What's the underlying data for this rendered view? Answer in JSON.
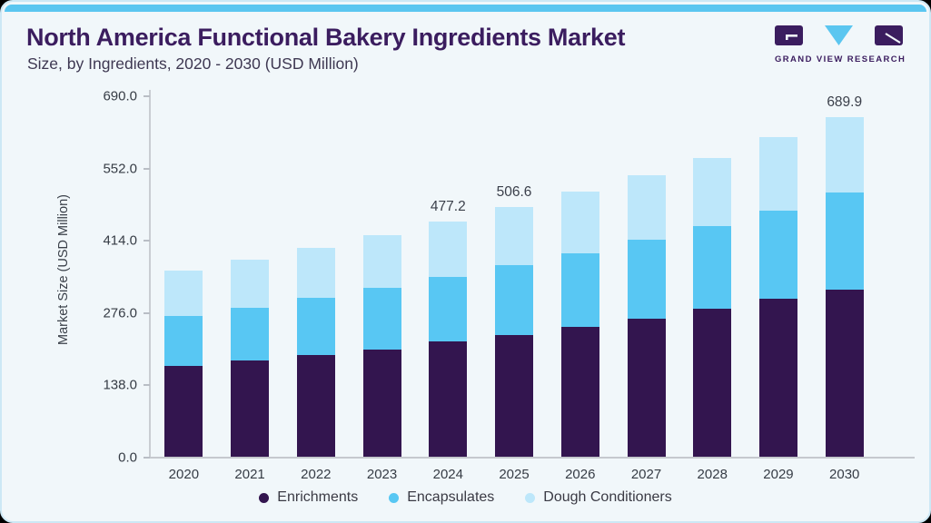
{
  "header": {
    "title": "North America Functional Bakery Ingredients Market",
    "subtitle": "Size, by Ingredients, 2020 - 2030 (USD Million)"
  },
  "logo": {
    "text": "GRAND VIEW RESEARCH",
    "purple": "#3B1D5F",
    "blue": "#5BC6F0"
  },
  "colors": {
    "card_background": "#F1F7FA",
    "top_strip": "#5BC6F0",
    "title_text": "#3B1D5F",
    "axis_text": "#363c45"
  },
  "chart_data": {
    "type": "bar",
    "stacked": true,
    "title": "North America Functional Bakery Ingredients Market Size, by Ingredients, 2020 - 2030 (USD Million)",
    "categories": [
      "2020",
      "2021",
      "2022",
      "2023",
      "2024",
      "2025",
      "2026",
      "2027",
      "2028",
      "2029",
      "2030"
    ],
    "series": [
      {
        "name": "Enrichments",
        "color": "#33154F",
        "values": [
          183.7,
          194.8,
          206.4,
          218.2,
          233.6,
          247.8,
          263.2,
          281.1,
          300.7,
          321.1,
          339.6
        ]
      },
      {
        "name": "Encapsulates",
        "color": "#58C7F3",
        "values": [
          101.7,
          107.2,
          116.0,
          124.5,
          131.3,
          140.6,
          149.3,
          159.6,
          168.4,
          179.4,
          197.3
        ]
      },
      {
        "name": "Dough Conditioners",
        "color": "#BDE7FA",
        "values": [
          91.9,
          98.1,
          101.2,
          106.8,
          112.3,
          118.2,
          126.3,
          131.9,
          138.6,
          148.0,
          153.0
        ]
      }
    ],
    "totals": [
      377.3,
      400.1,
      423.6,
      449.5,
      477.2,
      506.6,
      538.8,
      572.6,
      607.7,
      648.5,
      689.9
    ],
    "value_labels": {
      "2024": "477.2",
      "2025": "506.6",
      "2030": "689.9"
    },
    "xlabel": "",
    "ylabel": "Market Size (USD Million)",
    "ylim": [
      0,
      690
    ],
    "yticks": [
      0,
      138,
      276,
      414,
      552,
      690
    ],
    "ytick_labels": [
      "0.0",
      "138.0",
      "276.0",
      "414.0",
      "552.0",
      "690.0"
    ],
    "grid": false,
    "legend_position": "bottom"
  }
}
